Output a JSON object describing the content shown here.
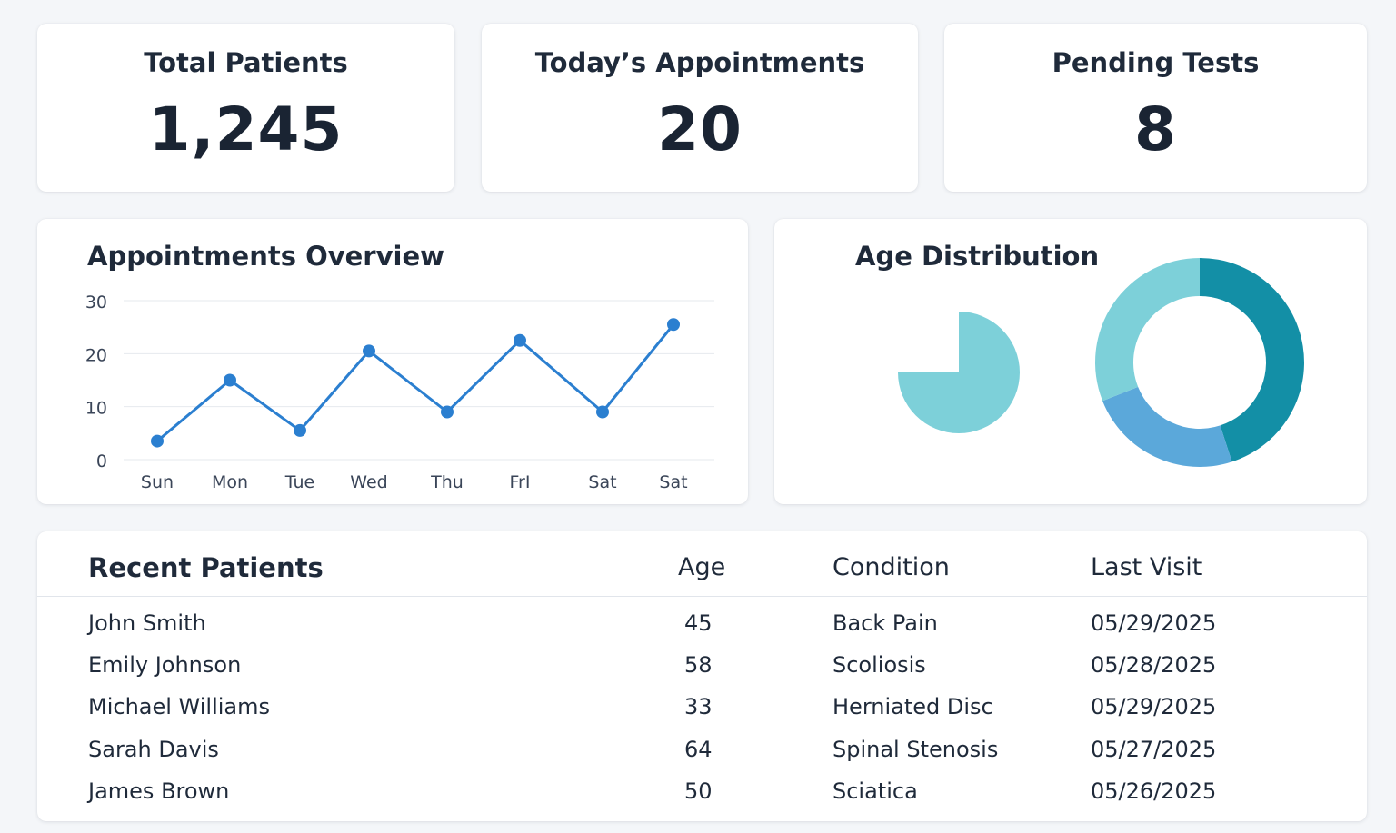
{
  "stats": [
    {
      "title": "Total Patients",
      "value": "1,245"
    },
    {
      "title": "Today’s Appointments",
      "value": "20"
    },
    {
      "title": "Pending Tests",
      "value": "8"
    }
  ],
  "appointments": {
    "title": "Appointments Overview"
  },
  "age_distribution": {
    "title": "Age Distribution"
  },
  "chart_data": [
    {
      "type": "line",
      "title": "Appointments Overview",
      "categories": [
        "Sun",
        "Mon",
        "Tue",
        "Wed",
        "Thu",
        "FrI",
        "Sat",
        "Sat"
      ],
      "values": [
        3.5,
        15,
        5.5,
        20.5,
        9,
        22.5,
        9,
        25.5
      ],
      "yticks": [
        0,
        10,
        20,
        30
      ],
      "ylim": [
        0,
        30
      ],
      "grid": true,
      "color": "#2b7fd0"
    },
    {
      "type": "pie",
      "title": "Age Distribution",
      "values": [
        75,
        25
      ],
      "colors": [
        "#7dd0d9",
        "transparent"
      ]
    },
    {
      "type": "pie",
      "subtype": "donut",
      "values": [
        45,
        24,
        31
      ],
      "colors": [
        "#138fa6",
        "#5ba8da",
        "#7dd0d9"
      ]
    }
  ],
  "recent_patients": {
    "title": "Recent Patients",
    "columns": [
      "Age",
      "Condition",
      "Last Visit"
    ],
    "rows": [
      {
        "name": "John Smith",
        "age": "45",
        "condition": "Back Pain",
        "last_visit": "05/29/2025"
      },
      {
        "name": "Emily Johnson",
        "age": "58",
        "condition": "Scoliosis",
        "last_visit": "05/28/2025"
      },
      {
        "name": "Michael Williams",
        "age": "33",
        "condition": "Herniated Disc",
        "last_visit": "05/29/2025"
      },
      {
        "name": "Sarah Davis",
        "age": "64",
        "condition": "Spinal Stenosis",
        "last_visit": "05/27/2025"
      },
      {
        "name": "James Brown",
        "age": "50",
        "condition": "Sciatica",
        "last_visit": "05/26/2025"
      }
    ]
  },
  "colors": {
    "background": "#f4f6f9",
    "card": "#ffffff",
    "text": "#1f2a3a",
    "line": "#2b7fd0",
    "teal_dark": "#138fa6",
    "blue_mid": "#5ba8da",
    "teal_light": "#7dd0d9"
  }
}
